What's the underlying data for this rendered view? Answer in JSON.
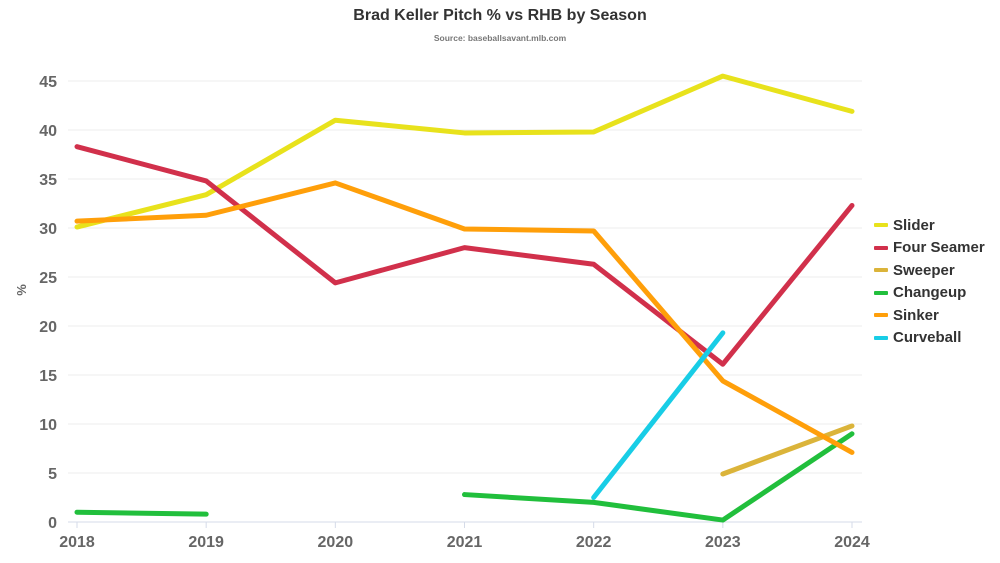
{
  "title": "Brad Keller Pitch % vs RHB by Season",
  "subtitle": "Source: baseballsavant.mlb.com",
  "chart_data": {
    "type": "line",
    "title": "Brad Keller Pitch % vs RHB by Season",
    "subtitle": "Source: baseballsavant.mlb.com",
    "xlabel": "",
    "ylabel": "%",
    "x": [
      "2018",
      "2019",
      "2020",
      "2021",
      "2022",
      "2023",
      "2024"
    ],
    "ylim": [
      0,
      45
    ],
    "yticks": [
      0,
      5,
      10,
      15,
      20,
      25,
      30,
      35,
      40,
      45
    ],
    "grid": true,
    "legend_position": "right",
    "series": [
      {
        "name": "Slider",
        "color": "#e8e21c",
        "values": [
          30.1,
          33.4,
          41.0,
          39.7,
          39.8,
          45.5,
          41.9
        ]
      },
      {
        "name": "Four Seamer",
        "color": "#d1304b",
        "values": [
          38.3,
          34.8,
          24.4,
          28.0,
          26.3,
          16.1,
          32.3
        ]
      },
      {
        "name": "Sweeper",
        "color": "#dbb43a",
        "values": [
          null,
          null,
          null,
          null,
          null,
          4.9,
          9.8
        ]
      },
      {
        "name": "Changeup",
        "color": "#21bf3c",
        "values": [
          1.0,
          0.8,
          null,
          2.8,
          2.0,
          0.2,
          9.0
        ]
      },
      {
        "name": "Sinker",
        "color": "#ff9f0a",
        "values": [
          30.7,
          31.3,
          34.6,
          29.9,
          29.7,
          14.4,
          7.1
        ]
      },
      {
        "name": "Curveball",
        "color": "#18cde6",
        "values": [
          null,
          null,
          null,
          null,
          2.5,
          19.3,
          null
        ]
      }
    ]
  }
}
